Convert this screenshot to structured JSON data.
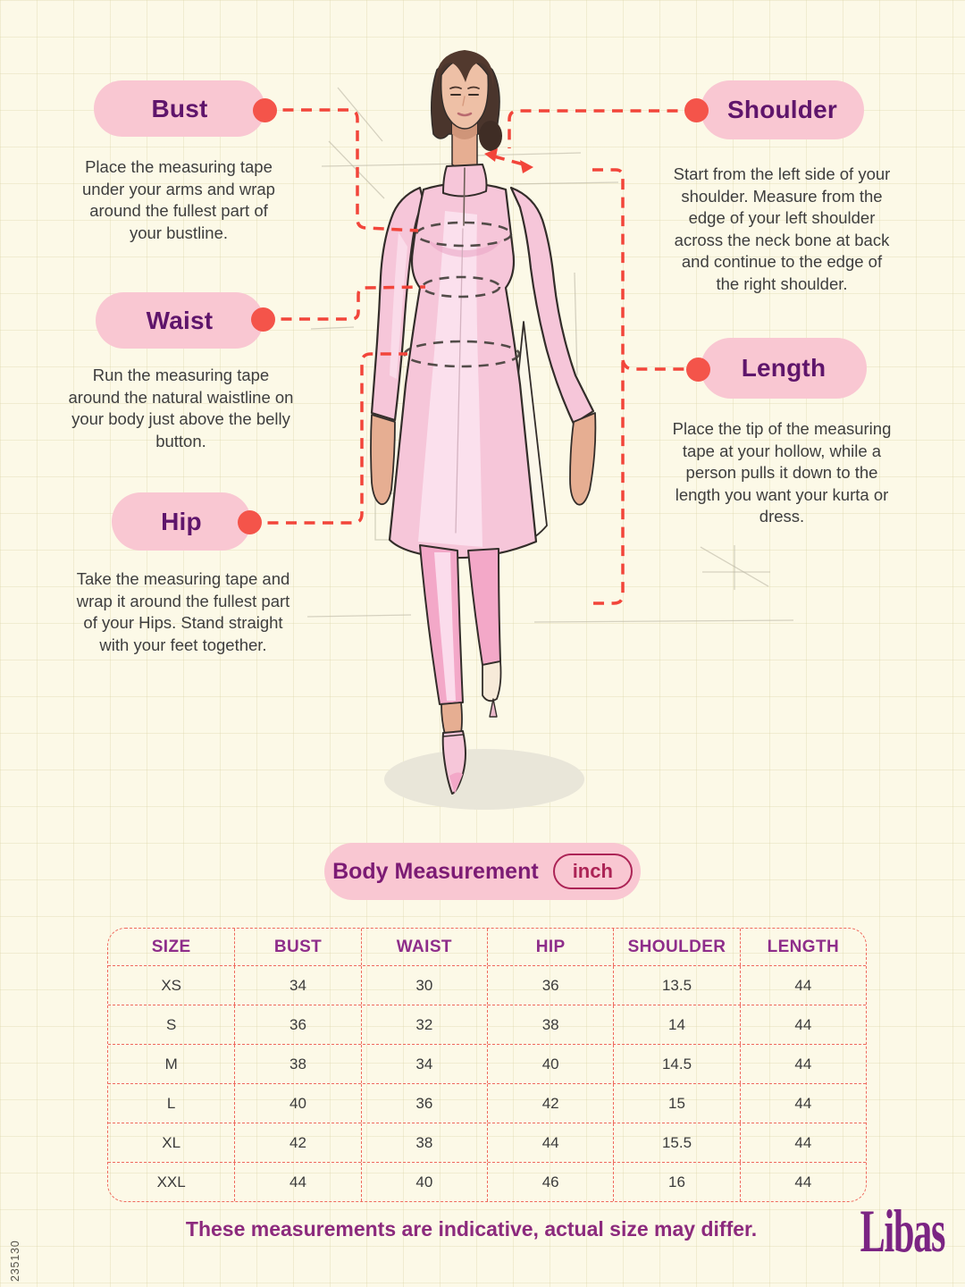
{
  "page": {
    "footer_note": "These measurements are indicative, actual size may differ.",
    "brand": "Libas",
    "side_code": "235130"
  },
  "sections": {
    "bust": {
      "label": "Bust",
      "description": "Place the measuring tape under your arms and wrap around the fullest part of your bustline."
    },
    "waist": {
      "label": "Waist",
      "description": "Run the measuring tape around the natural waistline on your body just above the belly button."
    },
    "hip": {
      "label": "Hip",
      "description": "Take the measuring tape and wrap it around the fullest part of your Hips. Stand straight with your feet together."
    },
    "shoulder": {
      "label": "Shoulder",
      "description": "Start from the left side of your shoulder. Measure from the edge of your left shoulder across the neck bone at back and continue to the edge of the right shoulder."
    },
    "length": {
      "label": "Length",
      "description": "Place the tip of the measuring tape at your hollow, while a person pulls it down to the length you want your kurta or dress."
    }
  },
  "measurement_table": {
    "title": "Body Measurement",
    "unit": "inch",
    "headers": [
      "SIZE",
      "BUST",
      "WAIST",
      "HIP",
      "SHOULDER",
      "LENGTH"
    ],
    "rows": [
      [
        "XS",
        "34",
        "30",
        "36",
        "13.5",
        "44"
      ],
      [
        "S",
        "36",
        "32",
        "38",
        "14",
        "44"
      ],
      [
        "M",
        "38",
        "34",
        "40",
        "14.5",
        "44"
      ],
      [
        "L",
        "40",
        "36",
        "42",
        "15",
        "44"
      ],
      [
        "XL",
        "42",
        "38",
        "44",
        "15.5",
        "44"
      ],
      [
        "XXL",
        "44",
        "40",
        "46",
        "16",
        "44"
      ]
    ]
  },
  "colors": {
    "background": "#fcf9e7",
    "pill_pink": "#f9c7d2",
    "label_purple": "#5f156b",
    "connector_red": "#f2453a",
    "dot_red": "#f4544a",
    "table_border": "#ef6a5e",
    "table_header_purple": "#8e2d8a",
    "body_text": "#3e3e3e",
    "unit_badge": "#ac2456",
    "title_purple": "#7c1b74",
    "footer_purple": "#8c2a7d",
    "brand_purple": "#7b2483"
  }
}
